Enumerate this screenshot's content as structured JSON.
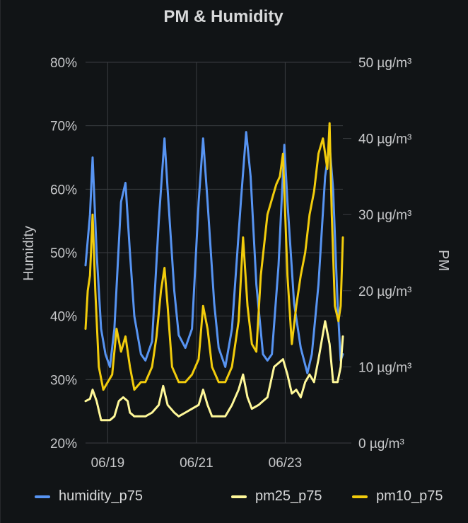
{
  "panel": {
    "title": "PM & Humidity"
  },
  "chart_data": {
    "type": "line",
    "title": "PM & Humidity",
    "left_axis": {
      "label": "Humidity",
      "ticks": [
        "20%",
        "30%",
        "40%",
        "50%",
        "60%",
        "70%",
        "80%"
      ],
      "min": 20,
      "max": 80
    },
    "right_axis": {
      "label": "PM",
      "ticks": [
        "0 µg/m³",
        "10 µg/m³",
        "20 µg/m³",
        "30 µg/m³",
        "40 µg/m³",
        "50 µg/m³"
      ],
      "min": 0,
      "max": 50
    },
    "x_axis": {
      "ticks": [
        "06/19",
        "06/21",
        "06/23"
      ],
      "start_day": 18.5,
      "end_day": 24.3
    },
    "grid": true,
    "legend_position": "bottom",
    "series": [
      {
        "name": "humidity_p75",
        "axis": "left",
        "color": "#5794f2",
        "points": [
          [
            18.5,
            48
          ],
          [
            18.6,
            56
          ],
          [
            18.66,
            65
          ],
          [
            18.75,
            50
          ],
          [
            18.85,
            38
          ],
          [
            18.95,
            34
          ],
          [
            19.05,
            32
          ],
          [
            19.15,
            38
          ],
          [
            19.3,
            58
          ],
          [
            19.4,
            61
          ],
          [
            19.5,
            50
          ],
          [
            19.6,
            40
          ],
          [
            19.75,
            34
          ],
          [
            19.85,
            33
          ],
          [
            20.0,
            36
          ],
          [
            20.15,
            55
          ],
          [
            20.28,
            68
          ],
          [
            20.35,
            60
          ],
          [
            20.5,
            44
          ],
          [
            20.6,
            37
          ],
          [
            20.75,
            35
          ],
          [
            20.9,
            38
          ],
          [
            21.05,
            58
          ],
          [
            21.15,
            68
          ],
          [
            21.25,
            58
          ],
          [
            21.4,
            42
          ],
          [
            21.5,
            35
          ],
          [
            21.65,
            32
          ],
          [
            21.8,
            38
          ],
          [
            22.0,
            58
          ],
          [
            22.12,
            69
          ],
          [
            22.22,
            62
          ],
          [
            22.35,
            45
          ],
          [
            22.5,
            34
          ],
          [
            22.6,
            33
          ],
          [
            22.7,
            34
          ],
          [
            22.85,
            48
          ],
          [
            22.98,
            67
          ],
          [
            23.05,
            58
          ],
          [
            23.2,
            42
          ],
          [
            23.35,
            35
          ],
          [
            23.5,
            31
          ],
          [
            23.6,
            34
          ],
          [
            23.75,
            45
          ],
          [
            23.9,
            62
          ],
          [
            24.0,
            67
          ],
          [
            24.08,
            60
          ],
          [
            24.18,
            42
          ],
          [
            24.25,
            33
          ],
          [
            24.3,
            34
          ]
        ]
      },
      {
        "name": "pm25_p75",
        "axis": "right",
        "color": "#fff899",
        "points": [
          [
            18.5,
            5.5
          ],
          [
            18.6,
            5.8
          ],
          [
            18.66,
            7.0
          ],
          [
            18.75,
            5.5
          ],
          [
            18.85,
            3.0
          ],
          [
            18.95,
            3.0
          ],
          [
            19.05,
            3.0
          ],
          [
            19.15,
            3.5
          ],
          [
            19.25,
            5.5
          ],
          [
            19.35,
            6.0
          ],
          [
            19.45,
            5.5
          ],
          [
            19.5,
            4.0
          ],
          [
            19.6,
            3.5
          ],
          [
            19.75,
            3.5
          ],
          [
            19.85,
            3.5
          ],
          [
            20.0,
            4.0
          ],
          [
            20.15,
            5.0
          ],
          [
            20.25,
            7.5
          ],
          [
            20.35,
            5.0
          ],
          [
            20.5,
            4.0
          ],
          [
            20.6,
            3.5
          ],
          [
            20.75,
            4.0
          ],
          [
            20.9,
            4.5
          ],
          [
            21.05,
            5.0
          ],
          [
            21.15,
            7.0
          ],
          [
            21.25,
            5.0
          ],
          [
            21.35,
            3.5
          ],
          [
            21.5,
            3.5
          ],
          [
            21.65,
            3.5
          ],
          [
            21.8,
            5.0
          ],
          [
            21.95,
            7.0
          ],
          [
            22.05,
            9.0
          ],
          [
            22.15,
            6.0
          ],
          [
            22.25,
            4.5
          ],
          [
            22.4,
            5.0
          ],
          [
            22.5,
            5.5
          ],
          [
            22.6,
            6.0
          ],
          [
            22.75,
            10.0
          ],
          [
            22.85,
            10.5
          ],
          [
            22.95,
            11.0
          ],
          [
            23.05,
            9.0
          ],
          [
            23.15,
            6.5
          ],
          [
            23.25,
            7.0
          ],
          [
            23.35,
            6.0
          ],
          [
            23.45,
            8.0
          ],
          [
            23.55,
            9.0
          ],
          [
            23.65,
            8.0
          ],
          [
            23.75,
            11.0
          ],
          [
            23.9,
            16.0
          ],
          [
            24.0,
            13.0
          ],
          [
            24.08,
            8.0
          ],
          [
            24.18,
            8.0
          ],
          [
            24.25,
            10.0
          ],
          [
            24.3,
            14.0
          ]
        ]
      },
      {
        "name": "pm10_p75",
        "axis": "right",
        "color": "#f2cc0c",
        "points": [
          [
            18.5,
            15
          ],
          [
            18.55,
            20
          ],
          [
            18.6,
            22
          ],
          [
            18.66,
            30
          ],
          [
            18.72,
            20
          ],
          [
            18.8,
            10
          ],
          [
            18.9,
            7
          ],
          [
            19.0,
            8
          ],
          [
            19.1,
            9
          ],
          [
            19.2,
            15
          ],
          [
            19.3,
            12
          ],
          [
            19.4,
            14
          ],
          [
            19.5,
            10
          ],
          [
            19.6,
            7
          ],
          [
            19.75,
            8
          ],
          [
            19.85,
            8
          ],
          [
            20.0,
            10
          ],
          [
            20.1,
            14
          ],
          [
            20.2,
            20
          ],
          [
            20.28,
            23
          ],
          [
            20.35,
            18
          ],
          [
            20.45,
            10
          ],
          [
            20.6,
            8
          ],
          [
            20.75,
            8
          ],
          [
            20.9,
            9
          ],
          [
            21.05,
            11
          ],
          [
            21.15,
            18
          ],
          [
            21.25,
            15
          ],
          [
            21.35,
            10
          ],
          [
            21.5,
            8
          ],
          [
            21.65,
            8
          ],
          [
            21.8,
            10
          ],
          [
            21.95,
            16
          ],
          [
            22.05,
            27
          ],
          [
            22.15,
            18
          ],
          [
            22.25,
            13
          ],
          [
            22.35,
            12
          ],
          [
            22.45,
            22
          ],
          [
            22.6,
            30
          ],
          [
            22.7,
            32
          ],
          [
            22.8,
            34
          ],
          [
            22.88,
            35
          ],
          [
            22.95,
            38
          ],
          [
            23.05,
            22
          ],
          [
            23.15,
            13
          ],
          [
            23.25,
            18
          ],
          [
            23.35,
            22
          ],
          [
            23.45,
            25
          ],
          [
            23.55,
            30
          ],
          [
            23.65,
            33
          ],
          [
            23.75,
            38
          ],
          [
            23.85,
            40
          ],
          [
            23.95,
            36
          ],
          [
            24.0,
            42
          ],
          [
            24.05,
            30
          ],
          [
            24.12,
            18
          ],
          [
            24.2,
            16
          ],
          [
            24.25,
            18
          ],
          [
            24.3,
            27
          ]
        ]
      }
    ]
  },
  "legend": [
    {
      "label": "humidity_p75",
      "color": "#5794f2"
    },
    {
      "label": "pm25_p75",
      "color": "#fff899"
    },
    {
      "label": "pm10_p75",
      "color": "#f2cc0c"
    }
  ]
}
